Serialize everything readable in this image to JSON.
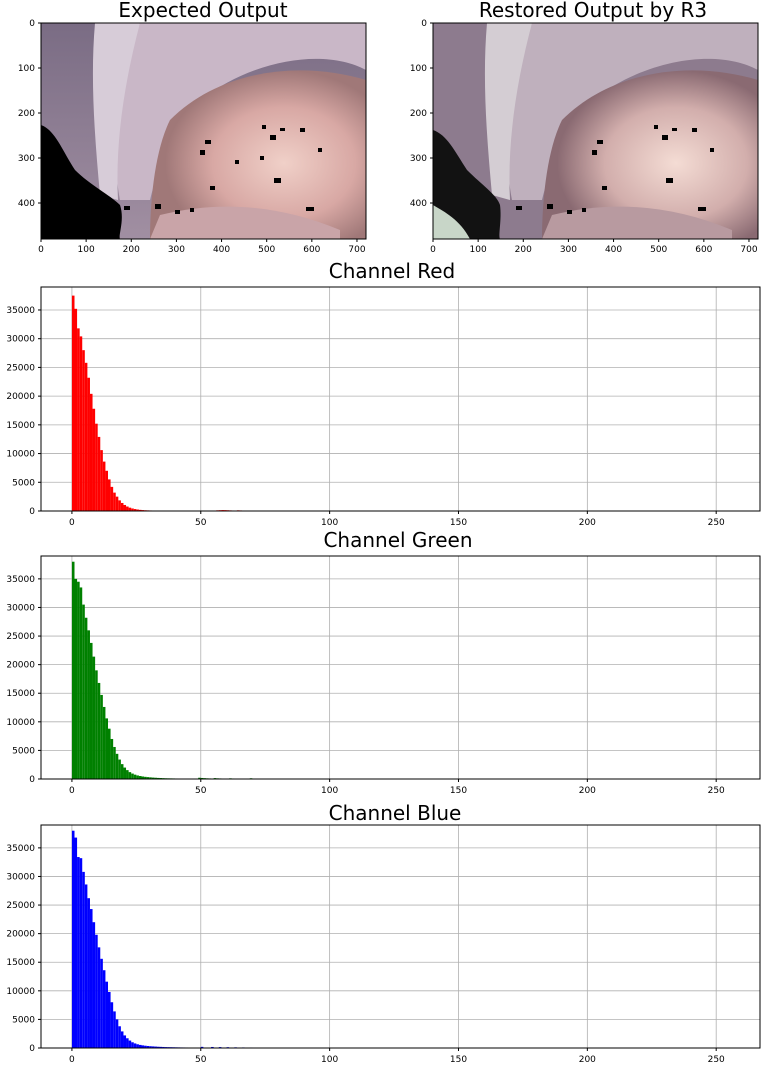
{
  "images": [
    {
      "title": "Expected Output",
      "x_ticks": [
        "0",
        "100",
        "200",
        "300",
        "400",
        "500",
        "600",
        "700"
      ],
      "y_ticks": [
        "0",
        "100",
        "200",
        "300",
        "400"
      ]
    },
    {
      "title": "Restored Output by R3",
      "x_ticks": [
        "0",
        "100",
        "200",
        "300",
        "400",
        "500",
        "600",
        "700"
      ],
      "y_ticks": [
        "0",
        "100",
        "200",
        "300",
        "400"
      ]
    }
  ],
  "chart_data": [
    {
      "type": "bar",
      "title": "Channel Red",
      "color": "#ff0000",
      "grid": true,
      "xlim": [
        -12,
        267
      ],
      "ylim": [
        0,
        39000
      ],
      "x_ticks": [
        0,
        50,
        100,
        150,
        200,
        250
      ],
      "y_ticks": [
        0,
        5000,
        10000,
        15000,
        20000,
        25000,
        30000,
        35000
      ],
      "bins": [
        0,
        1,
        2,
        3,
        4,
        5,
        6,
        7,
        8,
        9,
        10,
        11,
        12,
        13,
        14,
        15,
        16,
        17,
        18,
        19,
        20,
        21,
        22,
        23,
        24,
        25,
        26,
        27,
        28,
        29,
        30,
        31,
        32,
        33,
        34,
        35,
        36,
        37,
        38,
        39,
        40,
        41,
        42,
        43,
        44,
        45,
        46,
        47,
        48,
        49,
        50,
        51,
        52,
        53,
        54,
        55,
        56,
        57,
        58,
        59,
        60,
        61,
        62,
        63,
        64,
        65,
        66
      ],
      "values": [
        37500,
        35200,
        31800,
        30400,
        28000,
        25800,
        23200,
        20400,
        17800,
        15200,
        12900,
        10600,
        8600,
        7000,
        5500,
        4200,
        3200,
        2500,
        1850,
        1400,
        1050,
        780,
        580,
        440,
        340,
        260,
        200,
        160,
        130,
        110,
        95,
        80,
        70,
        60,
        55,
        50,
        45,
        40,
        38,
        35,
        32,
        30,
        28,
        26,
        24,
        22,
        20,
        20,
        18,
        18,
        16,
        16,
        14,
        14,
        12,
        12,
        120,
        140,
        160,
        150,
        130,
        110,
        90,
        70,
        120,
        100,
        60
      ]
    },
    {
      "type": "bar",
      "title": "Channel Green",
      "color": "#008000",
      "grid": true,
      "xlim": [
        -12,
        267
      ],
      "ylim": [
        0,
        39000
      ],
      "x_ticks": [
        0,
        50,
        100,
        150,
        200,
        250
      ],
      "y_ticks": [
        0,
        5000,
        10000,
        15000,
        20000,
        25000,
        30000,
        35000
      ],
      "bins": [
        0,
        1,
        2,
        3,
        4,
        5,
        6,
        7,
        8,
        9,
        10,
        11,
        12,
        13,
        14,
        15,
        16,
        17,
        18,
        19,
        20,
        21,
        22,
        23,
        24,
        25,
        26,
        27,
        28,
        29,
        30,
        31,
        32,
        33,
        34,
        35,
        36,
        37,
        38,
        39,
        40,
        41,
        42,
        43,
        44,
        45,
        46,
        47,
        48,
        49,
        50,
        51,
        52,
        53,
        54,
        55,
        56,
        57,
        58,
        59,
        60,
        61,
        62,
        63,
        64,
        65,
        66,
        67,
        68,
        69,
        70
      ],
      "values": [
        38000,
        35000,
        34500,
        33500,
        30500,
        28200,
        26000,
        23800,
        21400,
        19000,
        16800,
        14700,
        12600,
        10600,
        8800,
        7000,
        5600,
        4400,
        3400,
        2600,
        2000,
        1550,
        1200,
        950,
        760,
        620,
        520,
        440,
        380,
        330,
        290,
        250,
        220,
        190,
        170,
        150,
        130,
        120,
        110,
        100,
        90,
        85,
        80,
        75,
        70,
        65,
        60,
        55,
        50,
        220,
        180,
        150,
        120,
        100,
        80,
        160,
        120,
        100,
        80,
        60,
        50,
        120,
        90,
        70,
        50,
        40,
        30,
        25,
        20,
        130,
        40
      ]
    },
    {
      "type": "bar",
      "title": "Channel Blue",
      "color": "#0000ff",
      "grid": true,
      "xlim": [
        -12,
        267
      ],
      "ylim": [
        0,
        39000
      ],
      "x_ticks": [
        0,
        50,
        100,
        150,
        200,
        250
      ],
      "y_ticks": [
        0,
        5000,
        10000,
        15000,
        20000,
        25000,
        30000,
        35000
      ],
      "bins": [
        0,
        1,
        2,
        3,
        4,
        5,
        6,
        7,
        8,
        9,
        10,
        11,
        12,
        13,
        14,
        15,
        16,
        17,
        18,
        19,
        20,
        21,
        22,
        23,
        24,
        25,
        26,
        27,
        28,
        29,
        30,
        31,
        32,
        33,
        34,
        35,
        36,
        37,
        38,
        39,
        40,
        41,
        42,
        43,
        44,
        45,
        46,
        47,
        48,
        49,
        50,
        51,
        52,
        53,
        54,
        55,
        56,
        57,
        58,
        59,
        60,
        61,
        62,
        63,
        64,
        65,
        66,
        67,
        68,
        69,
        70,
        71,
        72,
        73,
        74,
        75
      ],
      "values": [
        38000,
        36800,
        33400,
        33200,
        30800,
        28600,
        26200,
        24300,
        22000,
        19800,
        17600,
        15600,
        13600,
        11600,
        9800,
        8000,
        6400,
        5000,
        3800,
        2900,
        2200,
        1700,
        1300,
        1000,
        800,
        650,
        540,
        460,
        400,
        350,
        310,
        280,
        250,
        220,
        200,
        180,
        160,
        150,
        140,
        130,
        120,
        110,
        100,
        95,
        90,
        85,
        80,
        75,
        70,
        65,
        200,
        60,
        55,
        50,
        180,
        45,
        40,
        160,
        40,
        35,
        140,
        35,
        30,
        120,
        30,
        25,
        100,
        25,
        20,
        90,
        20,
        20,
        80,
        15,
        15,
        70
      ]
    }
  ]
}
